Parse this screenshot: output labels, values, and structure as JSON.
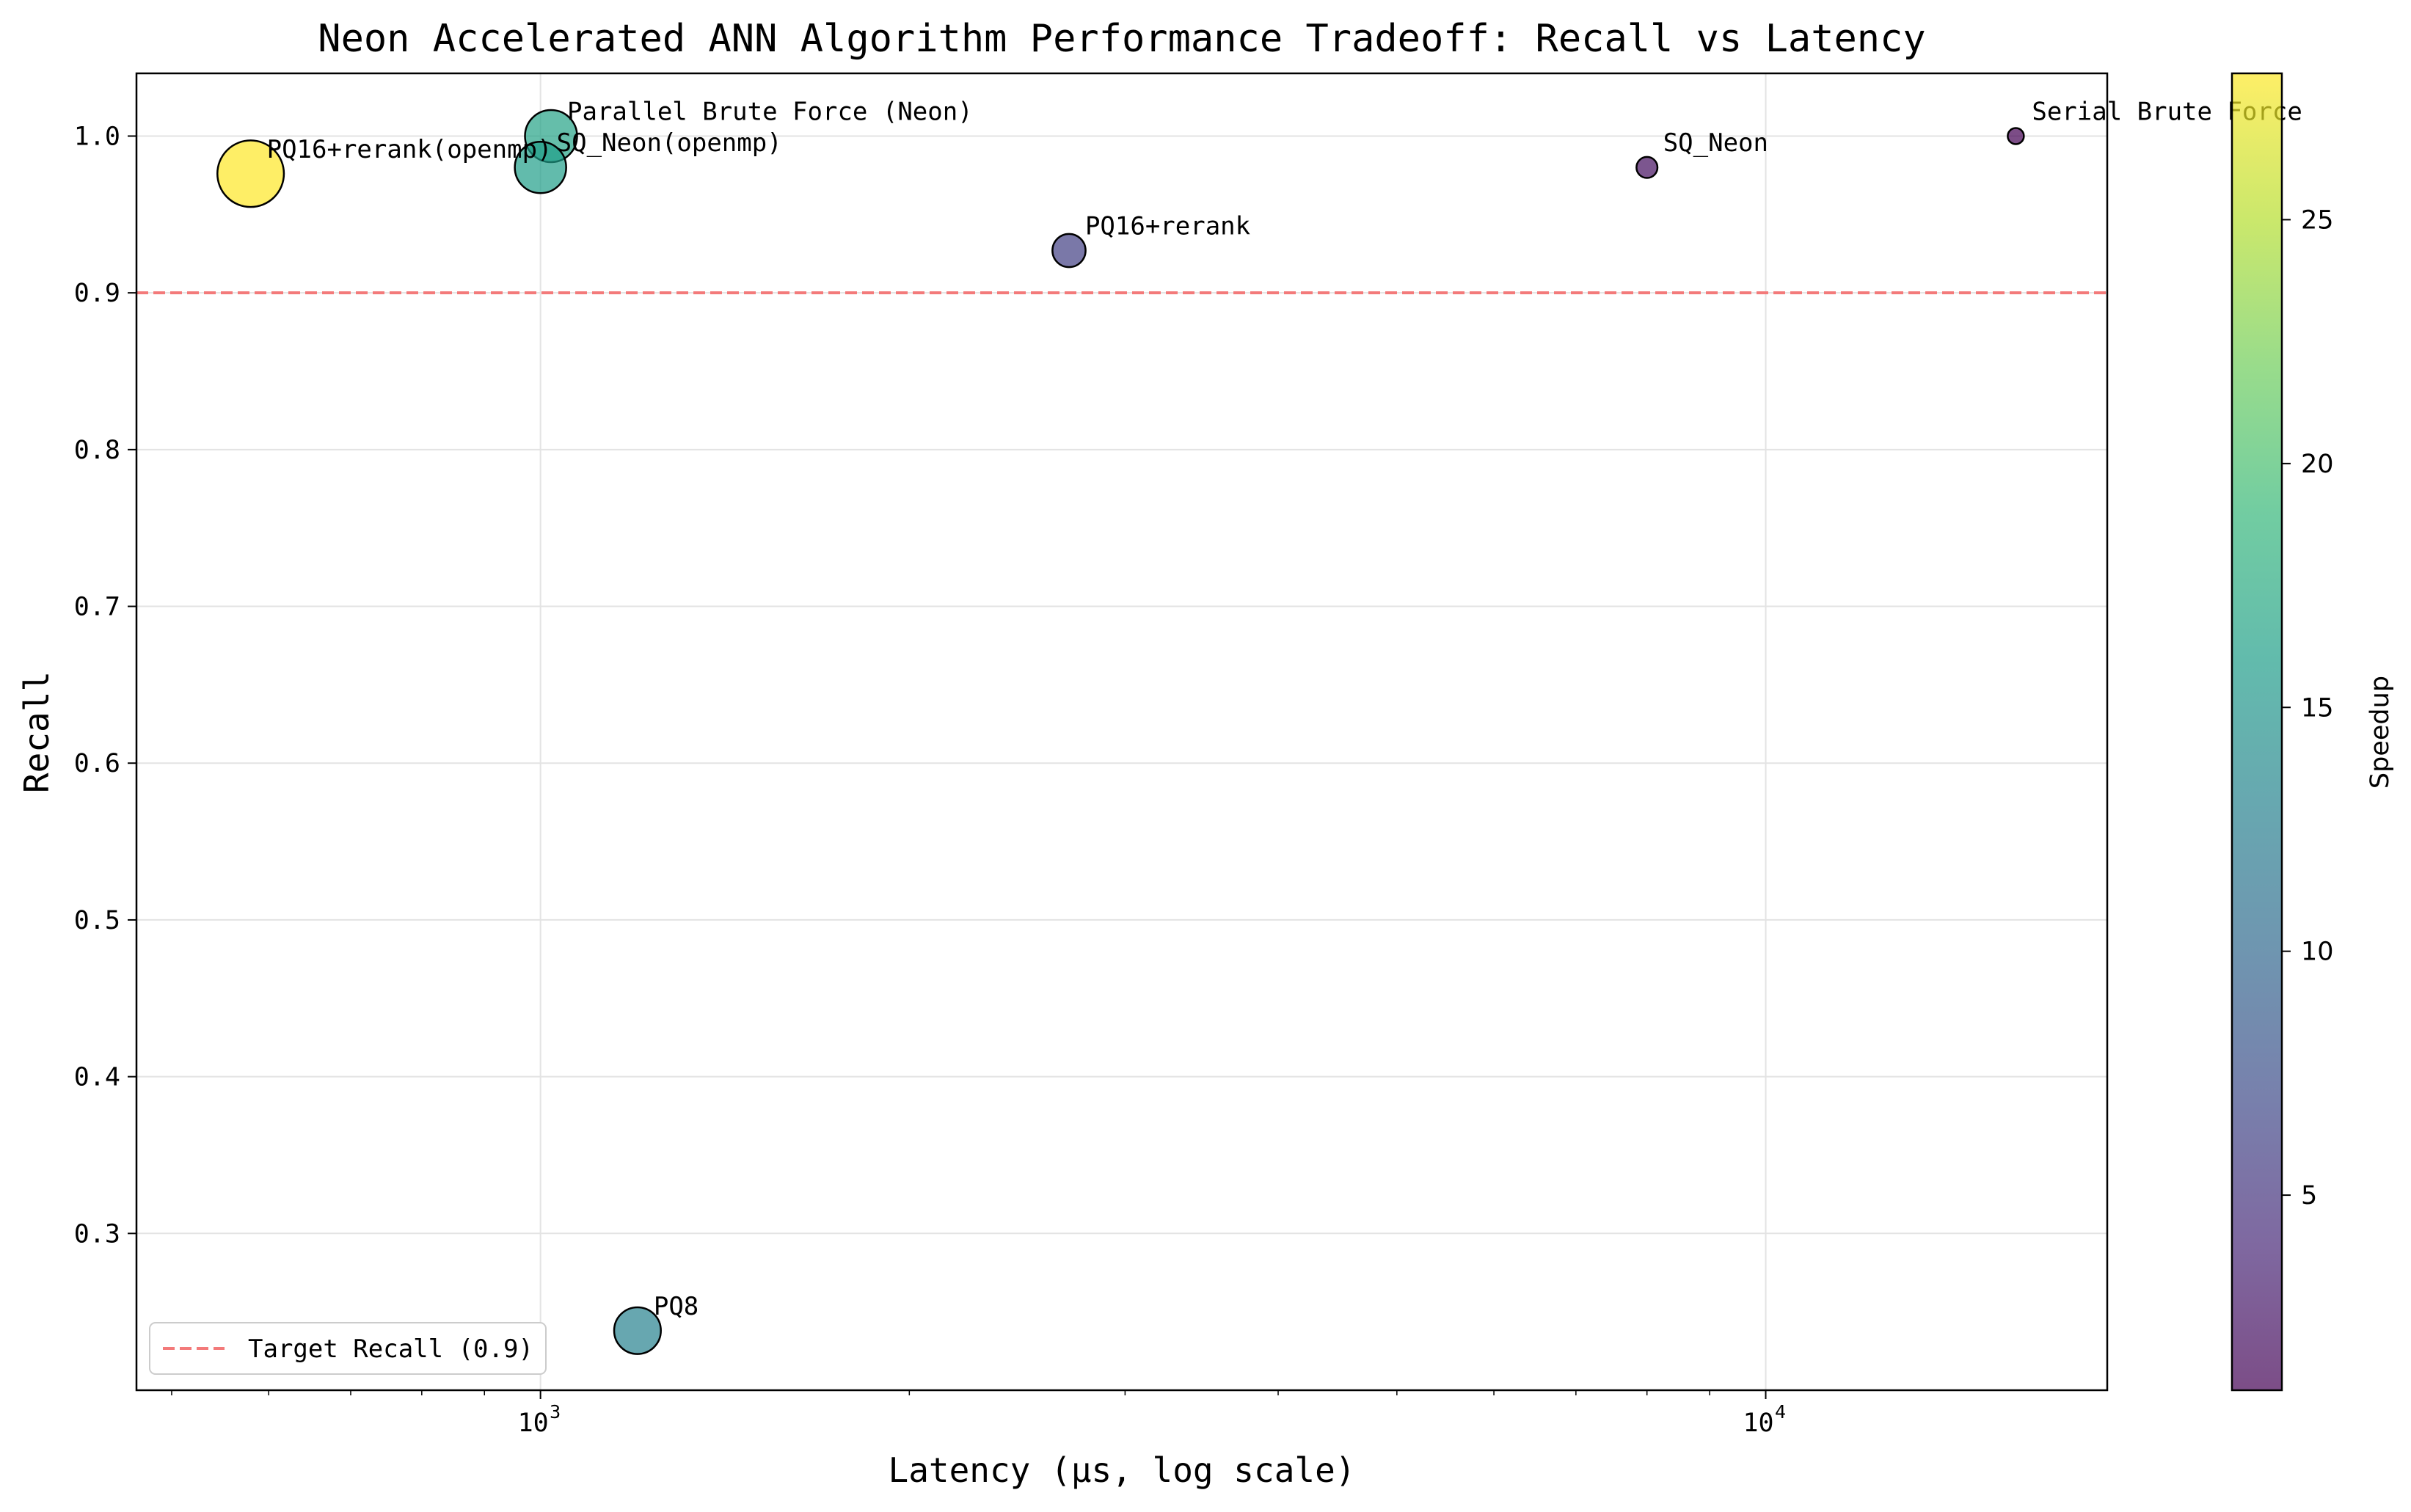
{
  "chart_data": {
    "type": "scatter",
    "title": "Neon Accelerated ANN Algorithm Performance Tradeoff: Recall vs Latency",
    "xlabel": "Latency (μs, log scale)",
    "ylabel": "Recall",
    "x_scale": "log",
    "xlim": [
      468,
      19000
    ],
    "ylim": [
      0.2,
      1.04
    ],
    "x_ticks": [
      {
        "value": 1000,
        "base": "10",
        "exp": "3"
      },
      {
        "value": 10000,
        "base": "10",
        "exp": "4"
      }
    ],
    "y_ticks": [
      "0.3",
      "0.4",
      "0.5",
      "0.6",
      "0.7",
      "0.8",
      "0.9",
      "1.0"
    ],
    "grid": true,
    "color_encoding": "speedup",
    "size_encoding": "speedup",
    "colormap": "viridis",
    "points": [
      {
        "label": "Serial Brute Force",
        "latency": 16000,
        "recall": 1.0,
        "speedup": 1.0
      },
      {
        "label": "SQ_Neon",
        "latency": 8000,
        "recall": 0.98,
        "speedup": 2.0
      },
      {
        "label": "PQ16+rerank",
        "latency": 2700,
        "recall": 0.927,
        "speedup": 6.0
      },
      {
        "label": "PQ8",
        "latency": 1200,
        "recall": 0.238,
        "speedup": 13.0
      },
      {
        "label": "SQ_Neon(openmp)",
        "latency": 1000,
        "recall": 0.98,
        "speedup": 16.0
      },
      {
        "label": "Parallel Brute Force (Neon)",
        "latency": 1020,
        "recall": 1.0,
        "speedup": 16.5
      },
      {
        "label": "PQ16+rerank(openmp)",
        "latency": 580,
        "recall": 0.976,
        "speedup": 28.0
      }
    ],
    "reference_line": {
      "value": 0.9,
      "label": "Target Recall (0.9)",
      "color": "#f37a7a",
      "style": "dashed"
    },
    "legend_position": "lower-left",
    "colorbar": {
      "label": "Speedup",
      "range": [
        1.0,
        28.0
      ],
      "ticks": [
        "5",
        "10",
        "15",
        "20",
        "25"
      ]
    }
  }
}
